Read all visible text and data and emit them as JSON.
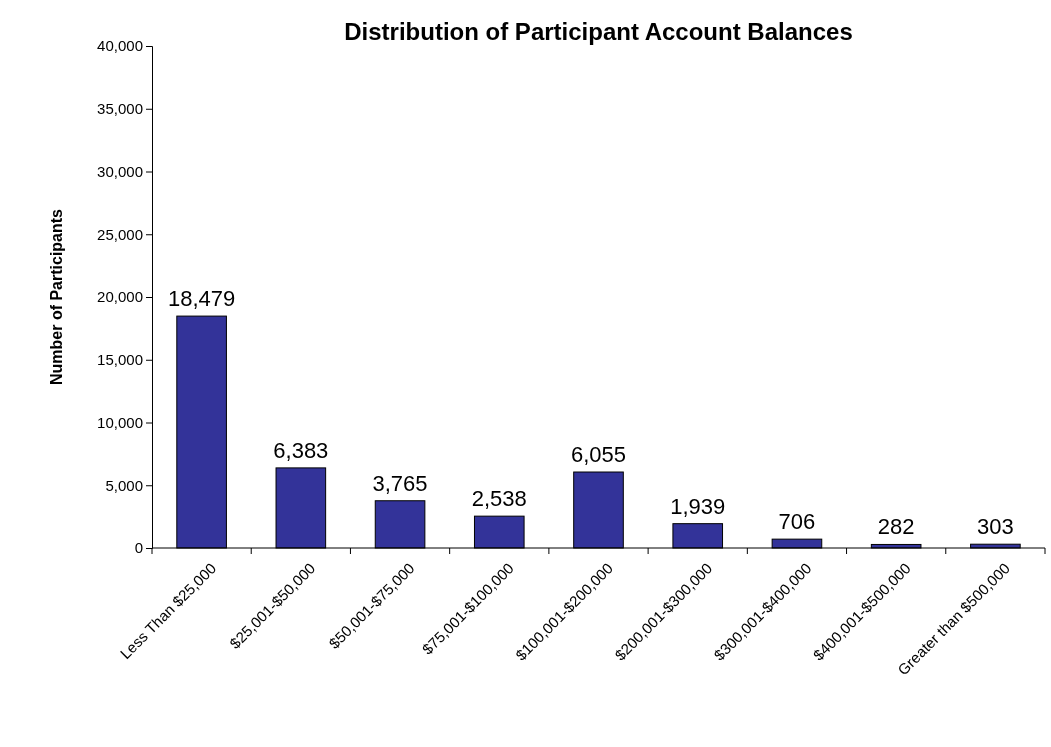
{
  "chart_data": {
    "type": "bar",
    "title": "Distribution of Participant Account Balances",
    "ylabel": "Number of Participants",
    "categories": [
      "Less Than $25,000",
      "$25,001-$50,000",
      "$50,001-$75,000",
      "$75,001-$100,000",
      "$100,001-$200,000",
      "$200,001-$300,000",
      "$300,001-$400,000",
      "$400,001-$500,000",
      "Greater than $500,000"
    ],
    "values": [
      18479,
      6383,
      3765,
      2538,
      6055,
      1939,
      706,
      282,
      303
    ],
    "value_labels": [
      "18,479",
      "6,383",
      "3,765",
      "2,538",
      "6,055",
      "1,939",
      "706",
      "282",
      "303"
    ],
    "color": "#333399",
    "ylim": [
      0,
      40000
    ],
    "yticks": [
      {
        "value": 0,
        "label": "0"
      },
      {
        "value": 5000,
        "label": "5,000"
      },
      {
        "value": 10000,
        "label": "10,000"
      },
      {
        "value": 15000,
        "label": "15,000"
      },
      {
        "value": 20000,
        "label": "20,000"
      },
      {
        "value": 25000,
        "label": "25,000"
      },
      {
        "value": 30000,
        "label": "30,000"
      },
      {
        "value": 35000,
        "label": "35,000"
      },
      {
        "value": 40000,
        "label": "40,000"
      }
    ],
    "grid": false
  }
}
